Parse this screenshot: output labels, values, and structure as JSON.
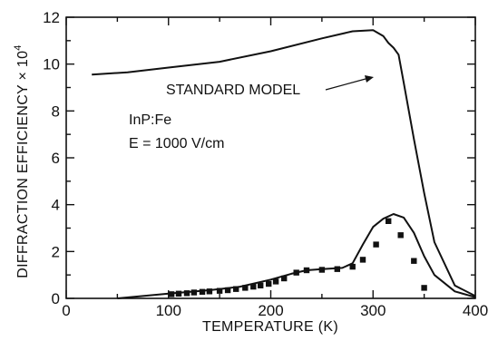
{
  "chart_data": {
    "type": "line",
    "xlabel": "TEMPERATURE (K)",
    "ylabel": "DIFFRACTION EFFICIENCY × 10",
    "ylabel_exponent": "4",
    "xlim": [
      0,
      400
    ],
    "ylim": [
      0,
      12
    ],
    "x_ticks": [
      "0",
      "100",
      "200",
      "300",
      "400"
    ],
    "y_ticks": [
      "0",
      "2",
      "4",
      "6",
      "8",
      "10",
      "12"
    ],
    "grid": false,
    "annotations": {
      "material": "InP:Fe",
      "field": "E = 1000 V/cm",
      "model_label": "STANDARD MODEL"
    },
    "series": [
      {
        "name": "STANDARD MODEL",
        "style": "line",
        "x": [
          25,
          60,
          100,
          150,
          200,
          250,
          280,
          300,
          310,
          315,
          320,
          325,
          330,
          340,
          350,
          360,
          380,
          400
        ],
        "y": [
          9.55,
          9.65,
          9.85,
          10.1,
          10.55,
          11.1,
          11.4,
          11.45,
          11.2,
          10.9,
          10.7,
          10.4,
          9.2,
          6.8,
          4.5,
          2.4,
          0.55,
          0.1
        ]
      },
      {
        "name": "",
        "style": "line",
        "x": [
          50,
          100,
          140,
          170,
          200,
          220,
          235,
          250,
          270,
          280,
          290,
          300,
          310,
          320,
          330,
          340,
          350,
          360,
          380,
          400
        ],
        "y": [
          0,
          0.2,
          0.35,
          0.5,
          0.8,
          1.05,
          1.2,
          1.25,
          1.3,
          1.5,
          2.3,
          3.05,
          3.4,
          3.6,
          3.45,
          2.8,
          1.8,
          1.0,
          0.3,
          0.05
        ]
      },
      {
        "name": "",
        "style": "markers",
        "x": [
          103,
          110,
          118,
          125,
          133,
          140,
          150,
          158,
          166,
          175,
          183,
          190,
          198,
          205,
          213,
          225,
          235,
          250,
          265,
          280,
          290,
          303,
          315,
          327,
          340,
          350
        ],
        "y": [
          0.18,
          0.2,
          0.22,
          0.25,
          0.28,
          0.3,
          0.32,
          0.35,
          0.4,
          0.45,
          0.5,
          0.55,
          0.62,
          0.72,
          0.85,
          1.1,
          1.2,
          1.22,
          1.25,
          1.35,
          1.65,
          2.3,
          3.3,
          2.7,
          1.6,
          0.45
        ]
      }
    ]
  }
}
